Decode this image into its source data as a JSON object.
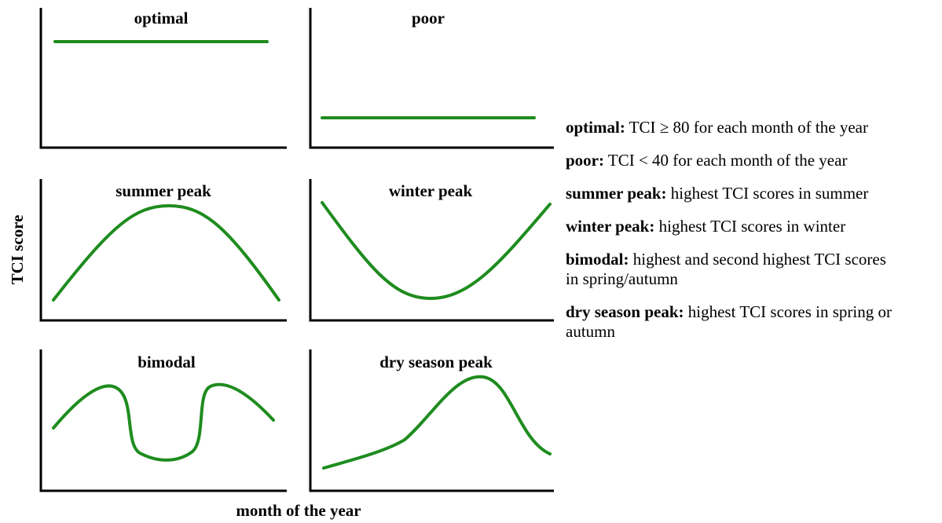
{
  "panels": [
    {
      "title": "optimal"
    },
    {
      "title": "poor"
    },
    {
      "title": "summer peak"
    },
    {
      "title": "winter peak"
    },
    {
      "title": "bimodal"
    },
    {
      "title": "dry season peak"
    }
  ],
  "axes": {
    "y_label": "TCI score",
    "x_label": "month of the year"
  },
  "legend": [
    {
      "term": "optimal:",
      "definition": "TCI ≥ 80 for each month of the year"
    },
    {
      "term": "poor:",
      "definition": "TCI < 40 for each month of the year"
    },
    {
      "term": "summer peak:",
      "definition": "highest TCI scores in summer"
    },
    {
      "term": "winter peak:",
      "definition": "highest TCI scores in winter"
    },
    {
      "term": "bimodal:",
      "definition": "highest and second highest TCI scores in spring/autumn"
    },
    {
      "term": "dry season peak:",
      "definition": "highest TCI scores in spring or autumn"
    }
  ]
}
